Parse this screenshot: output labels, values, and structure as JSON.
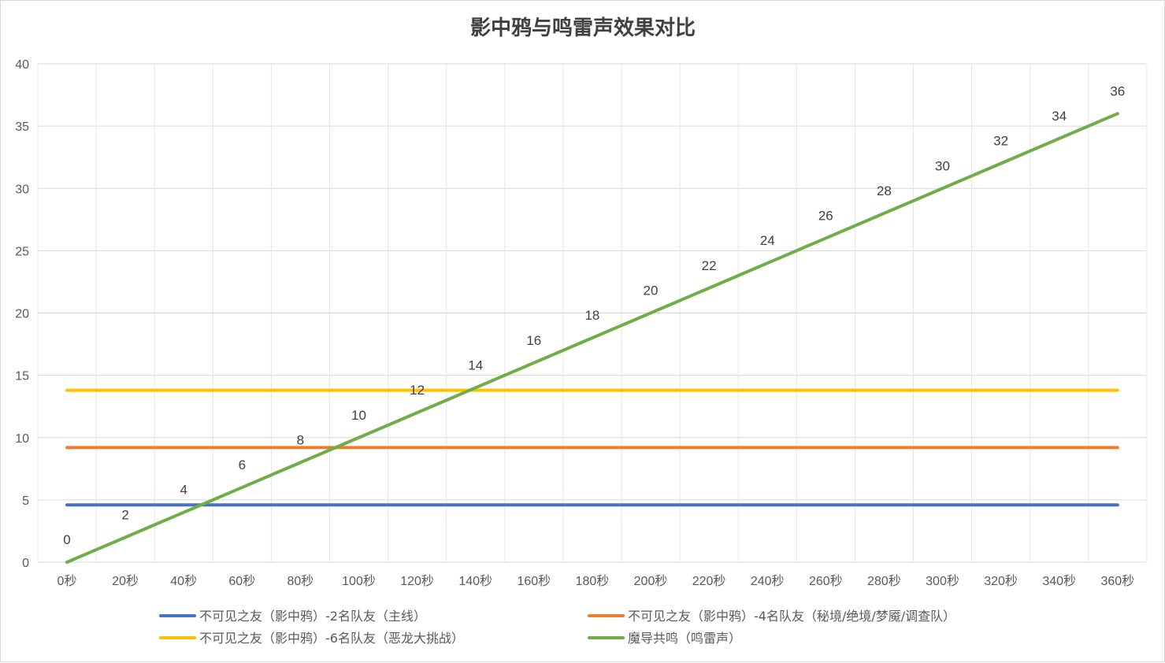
{
  "chart_data": {
    "type": "line",
    "title": "影中鸦与鸣雷声效果对比",
    "xlabel": "",
    "ylabel": "",
    "categories": [
      "0秒",
      "20秒",
      "40秒",
      "60秒",
      "80秒",
      "100秒",
      "120秒",
      "140秒",
      "160秒",
      "180秒",
      "200秒",
      "220秒",
      "240秒",
      "260秒",
      "280秒",
      "300秒",
      "320秒",
      "340秒",
      "360秒"
    ],
    "ylim": [
      0,
      40
    ],
    "yticks": [
      0,
      5,
      10,
      15,
      20,
      25,
      30,
      35,
      40
    ],
    "grid": true,
    "legend_position": "bottom",
    "series": [
      {
        "name": "不可见之友（影中鸦）-2名队友（主线）",
        "color": "#4472C4",
        "show_labels": false,
        "values": [
          4.6,
          4.6,
          4.6,
          4.6,
          4.6,
          4.6,
          4.6,
          4.6,
          4.6,
          4.6,
          4.6,
          4.6,
          4.6,
          4.6,
          4.6,
          4.6,
          4.6,
          4.6,
          4.6
        ]
      },
      {
        "name": "不可见之友（影中鸦）-4名队友（秘境/绝境/梦魇/调查队）",
        "color": "#ED7D31",
        "show_labels": false,
        "values": [
          9.2,
          9.2,
          9.2,
          9.2,
          9.2,
          9.2,
          9.2,
          9.2,
          9.2,
          9.2,
          9.2,
          9.2,
          9.2,
          9.2,
          9.2,
          9.2,
          9.2,
          9.2,
          9.2
        ]
      },
      {
        "name": "不可见之友（影中鸦）-6名队友（恶龙大挑战）",
        "color": "#FFC000",
        "show_labels": false,
        "values": [
          13.8,
          13.8,
          13.8,
          13.8,
          13.8,
          13.8,
          13.8,
          13.8,
          13.8,
          13.8,
          13.8,
          13.8,
          13.8,
          13.8,
          13.8,
          13.8,
          13.8,
          13.8,
          13.8
        ]
      },
      {
        "name": "魔导共鸣（鸣雷声）",
        "color": "#70AD47",
        "show_labels": true,
        "values": [
          0,
          2,
          4,
          6,
          8,
          10,
          12,
          14,
          16,
          18,
          20,
          22,
          24,
          26,
          28,
          30,
          32,
          34,
          36
        ]
      }
    ]
  }
}
